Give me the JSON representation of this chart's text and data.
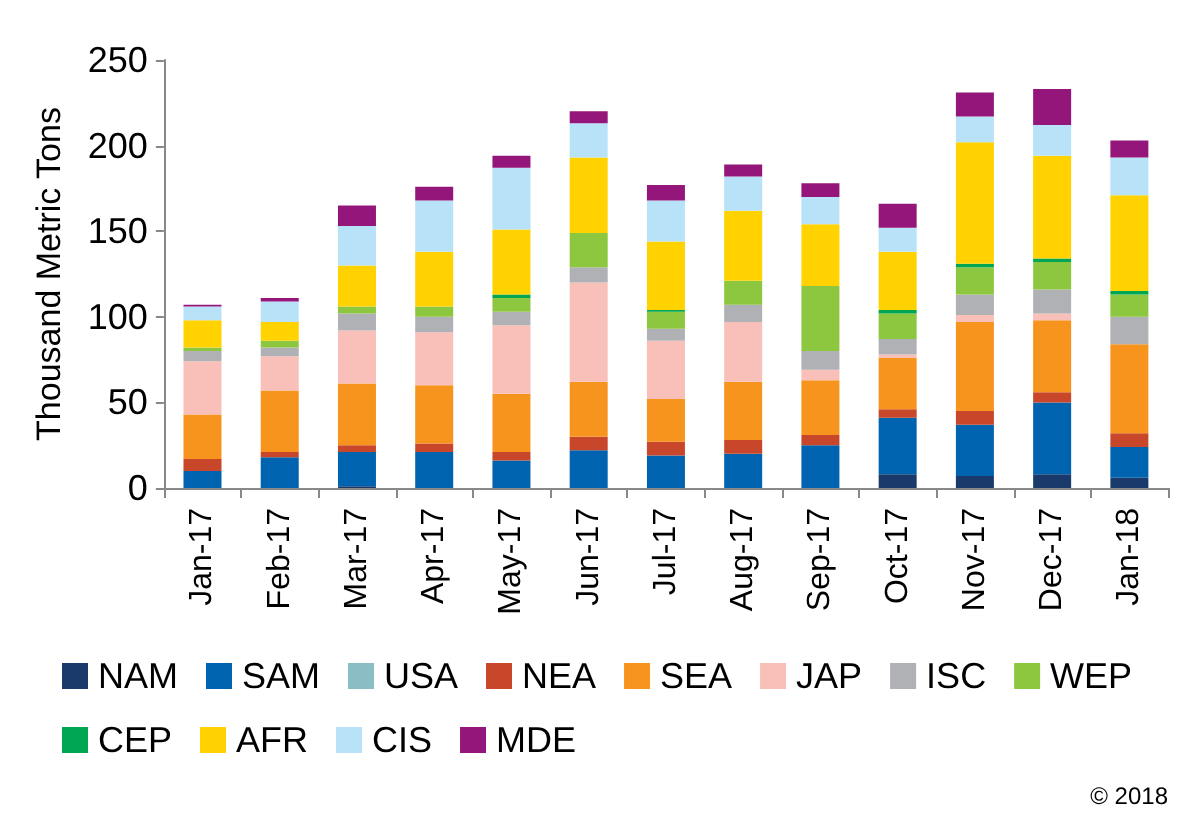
{
  "chart_data": {
    "type": "bar",
    "stacked": true,
    "ylabel": "Thousand Metric Tons",
    "categories": [
      "Jan-17",
      "Feb-17",
      "Mar-17",
      "Apr-17",
      "May-17",
      "Jun-17",
      "Jul-17",
      "Aug-17",
      "Sep-17",
      "Oct-17",
      "Nov-17",
      "Dec-17",
      "Jan-18"
    ],
    "series": [
      {
        "name": "NAM",
        "color": "#1a3a6b",
        "values": [
          0,
          0,
          1,
          0,
          0,
          0,
          0,
          0,
          0,
          8,
          7,
          8,
          6
        ]
      },
      {
        "name": "SAM",
        "color": "#0063b0",
        "values": [
          10,
          18,
          20,
          21,
          16,
          22,
          19,
          20,
          25,
          33,
          30,
          42,
          18
        ]
      },
      {
        "name": "USA",
        "color": "#8bbdc4",
        "values": [
          0,
          0,
          0,
          0,
          0,
          0,
          0,
          0,
          0,
          0,
          0,
          0,
          0
        ]
      },
      {
        "name": "NEA",
        "color": "#c8462a",
        "values": [
          7,
          3,
          4,
          5,
          5,
          8,
          8,
          8,
          6,
          5,
          8,
          6,
          8
        ]
      },
      {
        "name": "SEA",
        "color": "#f7941d",
        "values": [
          26,
          36,
          36,
          34,
          34,
          32,
          25,
          34,
          32,
          30,
          52,
          42,
          52
        ]
      },
      {
        "name": "JAP",
        "color": "#f9bfb9",
        "values": [
          31,
          20,
          31,
          31,
          40,
          58,
          34,
          35,
          6,
          2,
          4,
          4,
          0
        ]
      },
      {
        "name": "ISC",
        "color": "#b0b1b5",
        "values": [
          6,
          5,
          10,
          9,
          8,
          9,
          7,
          10,
          11,
          9,
          12,
          14,
          16
        ]
      },
      {
        "name": "WEP",
        "color": "#8dc63f",
        "values": [
          2,
          4,
          4,
          6,
          8,
          20,
          10,
          14,
          38,
          15,
          16,
          16,
          13
        ]
      },
      {
        "name": "CEP",
        "color": "#00a651",
        "values": [
          0,
          0,
          0,
          0,
          2,
          0,
          1,
          0,
          0,
          2,
          2,
          2,
          2
        ]
      },
      {
        "name": "AFR",
        "color": "#ffd200",
        "values": [
          16,
          11,
          24,
          32,
          38,
          44,
          40,
          41,
          36,
          34,
          71,
          60,
          56
        ]
      },
      {
        "name": "CIS",
        "color": "#b8e2f8",
        "values": [
          8,
          12,
          23,
          30,
          36,
          20,
          24,
          20,
          16,
          14,
          15,
          18,
          22
        ]
      },
      {
        "name": "MDE",
        "color": "#94167b",
        "values": [
          1,
          2,
          12,
          8,
          7,
          7,
          9,
          7,
          8,
          14,
          14,
          21,
          10
        ]
      }
    ],
    "ylim": [
      0,
      250
    ],
    "yticks": [
      0,
      50,
      100,
      150,
      200,
      250
    ],
    "grid": false,
    "legend": "bottom",
    "annotations": [
      "© 2018"
    ]
  }
}
